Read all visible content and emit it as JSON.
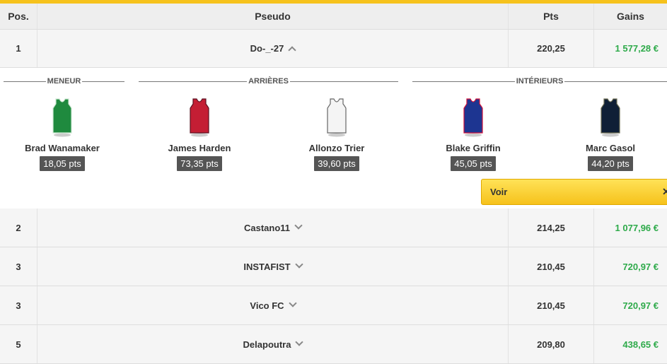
{
  "header": {
    "pos": "Pos.",
    "pseudo": "Pseudo",
    "pts": "Pts",
    "gains": "Gains"
  },
  "rows": [
    {
      "pos": "1",
      "pseudo": "Do-_-27",
      "pts": "220,25",
      "gains": "1 577,28 €",
      "expanded": true
    },
    {
      "pos": "2",
      "pseudo": "Castano11",
      "pts": "214,25",
      "gains": "1 077,96 €"
    },
    {
      "pos": "3",
      "pseudo": "INSTAFIST",
      "pts": "210,45",
      "gains": "720,97 €"
    },
    {
      "pos": "3",
      "pseudo": "Vico FC",
      "pts": "210,45",
      "gains": "720,97 €"
    },
    {
      "pos": "5",
      "pseudo": "Delapoutra",
      "pts": "209,80",
      "gains": "438,65 €"
    }
  ],
  "lineup": {
    "sections": [
      "MENEUR",
      "ARRIÈRES",
      "INTÉRIEURS"
    ],
    "players": [
      {
        "name": "Brad Wanamaker",
        "pts": "18,05 pts",
        "color": "#1f8a3e",
        "trim": "#cfe8d4"
      },
      {
        "name": "James Harden",
        "pts": "73,35 pts",
        "color": "#c41e34",
        "trim": "#5a1020"
      },
      {
        "name": "Allonzo Trier",
        "pts": "39,60 pts",
        "color": "#f4f4f4",
        "trim": "#666"
      },
      {
        "name": "Blake Griffin",
        "pts": "45,05 pts",
        "color": "#1d3591",
        "trim": "#d0103a"
      },
      {
        "name": "Marc Gasol",
        "pts": "44,20 pts",
        "color": "#0f1f36",
        "trim": "#6a6a50"
      }
    ],
    "voir_label": "Voir",
    "close_glyph": "✕"
  },
  "colors": {
    "accent": "#f6c21c",
    "gain": "#2eaa4a"
  }
}
